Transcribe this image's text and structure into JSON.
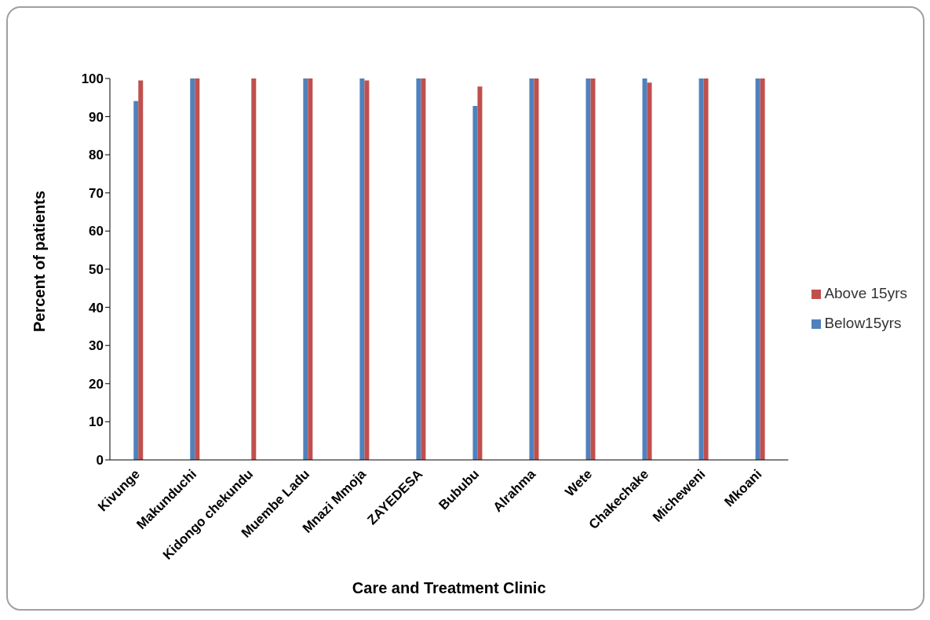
{
  "chart_data": {
    "type": "bar",
    "xlabel": "Care and Treatment Clinic",
    "ylabel": "Percent of patients",
    "categories": [
      "Kivunge",
      "Makunduchi",
      "Kidongo chekundu",
      "Muembe Ladu",
      "Mnazi Mmoja",
      "ZAYEDESA",
      "Bububu",
      "Alrahma",
      "Wete",
      "Chakechake",
      "Micheweni",
      "Mkoani"
    ],
    "series": [
      {
        "name": "Below15yrs",
        "color": "#4f81bd",
        "values": [
          94.1,
          100,
          0,
          100,
          100,
          100,
          92.8,
          100,
          100,
          100,
          100,
          100
        ]
      },
      {
        "name": "Above 15yrs",
        "color": "#c0504d",
        "values": [
          99.5,
          100,
          100,
          100,
          99.5,
          100,
          97.9,
          100,
          100,
          98.9,
          100,
          100
        ]
      }
    ],
    "ylim": [
      0,
      100
    ],
    "yticks": [
      0,
      10,
      20,
      30,
      40,
      50,
      60,
      70,
      80,
      90,
      100
    ],
    "grid": false,
    "legend": "right"
  }
}
